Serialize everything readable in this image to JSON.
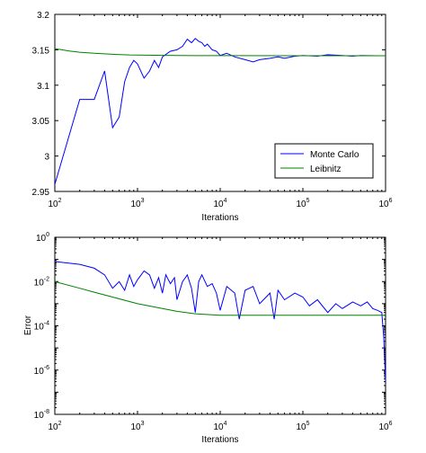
{
  "chart_data": [
    {
      "type": "line",
      "title": "",
      "xlabel": "Iterations",
      "ylabel": "",
      "xscale": "log",
      "yscale": "linear",
      "xlim": [
        100,
        1000000
      ],
      "ylim": [
        2.95,
        3.2
      ],
      "xticks": [
        {
          "base": "10",
          "exp": "2"
        },
        {
          "base": "10",
          "exp": "3"
        },
        {
          "base": "10",
          "exp": "4"
        },
        {
          "base": "10",
          "exp": "5"
        },
        {
          "base": "10",
          "exp": "6"
        }
      ],
      "yticks": [
        "2.95",
        "3",
        "3.05",
        "3.1",
        "3.15",
        "3.2"
      ],
      "legend": "inside-bottom-right",
      "series": [
        {
          "name": "Monte Carlo",
          "color": "#0000ff",
          "x": [
            100,
            200,
            300,
            400,
            500,
            600,
            700,
            800,
            900,
            1000,
            1200,
            1400,
            1600,
            1800,
            2000,
            2500,
            3000,
            3500,
            4000,
            4500,
            5000,
            5500,
            6000,
            6500,
            7000,
            8000,
            9000,
            10000,
            12000,
            15000,
            20000,
            25000,
            30000,
            40000,
            50000,
            60000,
            80000,
            100000,
            150000,
            200000,
            300000,
            400000,
            500000,
            600000,
            800000,
            1000000
          ],
          "y": [
            2.96,
            3.08,
            3.08,
            3.12,
            3.04,
            3.055,
            3.105,
            3.125,
            3.135,
            3.13,
            3.11,
            3.12,
            3.135,
            3.125,
            3.14,
            3.148,
            3.15,
            3.155,
            3.165,
            3.16,
            3.166,
            3.162,
            3.16,
            3.155,
            3.158,
            3.15,
            3.148,
            3.142,
            3.145,
            3.14,
            3.136,
            3.133,
            3.136,
            3.138,
            3.14,
            3.138,
            3.141,
            3.142,
            3.141,
            3.143,
            3.142,
            3.141,
            3.142,
            3.1418,
            3.1416,
            3.1416
          ]
        },
        {
          "name": "Leibnitz",
          "color": "#008000",
          "x": [
            100,
            150,
            200,
            300,
            500,
            800,
            1000,
            2000,
            5000,
            10000,
            100000,
            1000000
          ],
          "y": [
            3.1516,
            3.1483,
            3.1466,
            3.145,
            3.1436,
            3.1428,
            3.1426,
            3.1421,
            3.1418,
            3.1417,
            3.1416,
            3.14159
          ]
        }
      ]
    },
    {
      "type": "line",
      "title": "",
      "xlabel": "Iterations",
      "ylabel": "Error",
      "xscale": "log",
      "yscale": "log",
      "xlim": [
        100,
        1000000
      ],
      "ylim": [
        1e-08,
        1
      ],
      "xticks": [
        {
          "base": "10",
          "exp": "2"
        },
        {
          "base": "10",
          "exp": "3"
        },
        {
          "base": "10",
          "exp": "4"
        },
        {
          "base": "10",
          "exp": "5"
        },
        {
          "base": "10",
          "exp": "6"
        }
      ],
      "yticks": [
        {
          "base": "10",
          "exp": "-8"
        },
        {
          "base": "10",
          "exp": "-6"
        },
        {
          "base": "10",
          "exp": "-4"
        },
        {
          "base": "10",
          "exp": "-2"
        },
        {
          "base": "10",
          "exp": "0"
        }
      ],
      "series": [
        {
          "name": "",
          "color": "#0000ff",
          "x": [
            100,
            200,
            300,
            400,
            500,
            600,
            700,
            800,
            900,
            1000,
            1200,
            1400,
            1600,
            1800,
            2000,
            2200,
            2500,
            2800,
            3000,
            3500,
            4000,
            4500,
            5000,
            5500,
            6000,
            7000,
            8000,
            9000,
            10000,
            12000,
            15000,
            17000,
            20000,
            25000,
            30000,
            40000,
            45000,
            50000,
            60000,
            80000,
            100000,
            120000,
            150000,
            200000,
            250000,
            300000,
            400000,
            500000,
            600000,
            700000,
            800000,
            900000,
            950000,
            1000000
          ],
          "y": [
            0.08,
            0.06,
            0.04,
            0.02,
            0.005,
            0.01,
            0.004,
            0.02,
            0.006,
            0.012,
            0.03,
            0.02,
            0.005,
            0.015,
            0.003,
            0.02,
            0.008,
            0.015,
            0.0015,
            0.01,
            0.02,
            0.005,
            0.0004,
            0.01,
            0.02,
            0.006,
            0.008,
            0.003,
            0.0005,
            0.006,
            0.003,
            0.0002,
            0.004,
            0.006,
            0.001,
            0.003,
            0.0002,
            0.004,
            0.0015,
            0.003,
            0.002,
            0.0008,
            0.0015,
            0.0004,
            0.001,
            0.0006,
            0.0012,
            0.0008,
            0.0012,
            0.0006,
            0.0005,
            0.0004,
            3e-05,
            3e-07
          ]
        },
        {
          "name": "",
          "color": "#008000",
          "x": [
            100,
            200,
            300,
            500,
            1000,
            2000,
            3000,
            5000,
            10000,
            20000,
            30000,
            50000,
            100000,
            1000000
          ],
          "y": [
            0.01,
            0.005,
            0.0033,
            0.002,
            0.001,
            0.0006,
            0.00045,
            0.00035,
            0.0003,
            0.0003,
            0.0003,
            0.0003,
            0.0003,
            0.0003
          ]
        }
      ]
    }
  ]
}
